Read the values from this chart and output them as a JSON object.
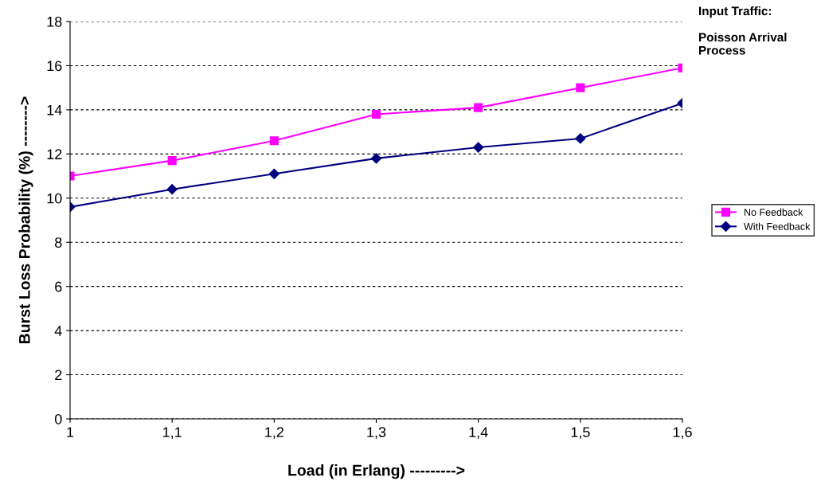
{
  "chart_data": {
    "type": "line",
    "xlabel": "Load (in Erlang) --------->",
    "ylabel": "Burst Loss Probability (%) -------->",
    "categories": [
      "1",
      "1,1",
      "1,2",
      "1,3",
      "1,4",
      "1,5",
      "1,6"
    ],
    "series": [
      {
        "name": "No Feedback",
        "color": "#ff00ff",
        "marker": "square",
        "values": [
          11.0,
          11.7,
          12.6,
          13.8,
          14.1,
          15.0,
          15.9
        ]
      },
      {
        "name": "With Feedback",
        "color": "#000080",
        "marker": "diamond",
        "values": [
          9.6,
          10.4,
          11.1,
          11.8,
          12.3,
          12.7,
          14.3
        ]
      }
    ],
    "ylim": [
      0,
      18
    ],
    "yticks": [
      0,
      2,
      4,
      6,
      8,
      10,
      12,
      14,
      16,
      18
    ],
    "grid": "y",
    "legend": "right",
    "annotations": [
      "Input Traffic:\n\nPoisson Arrival Process"
    ]
  }
}
